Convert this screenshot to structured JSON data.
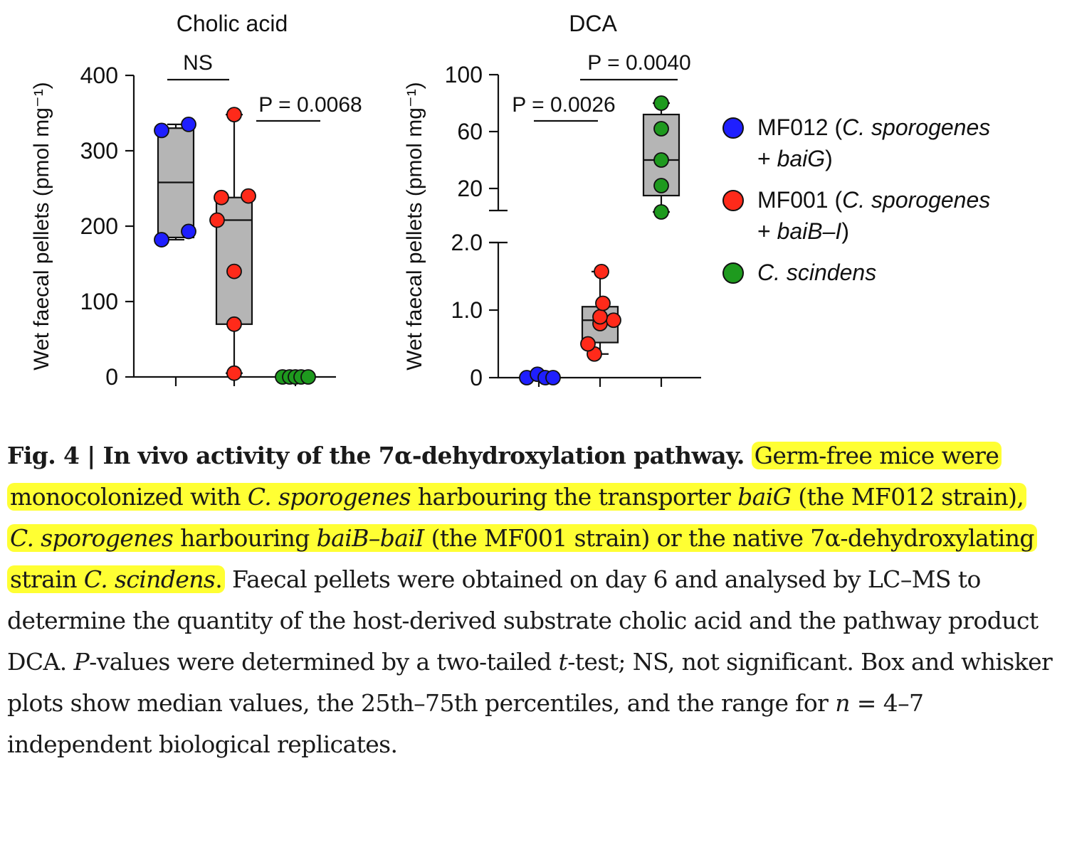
{
  "chart_data": [
    {
      "type": "box",
      "title": "Cholic acid",
      "ylabel": "Wet faecal pellets (pmol mg⁻¹)",
      "ylim": [
        0,
        400
      ],
      "yticks": [
        "0",
        "100",
        "200",
        "300",
        "400"
      ],
      "groups": [
        {
          "series": "MF012",
          "color": "#1f1fff",
          "points": [
            182,
            193,
            327,
            335
          ],
          "box": {
            "min": 182,
            "q1": 185,
            "median": 258,
            "q3": 330,
            "max": 335
          }
        },
        {
          "series": "MF001",
          "color": "#ff2a1a",
          "points": [
            5,
            70,
            140,
            208,
            238,
            240,
            348
          ],
          "box": {
            "min": 5,
            "q1": 70,
            "median": 208,
            "q3": 238,
            "max": 348
          }
        },
        {
          "series": "C. scindens",
          "color": "#1e9a1e",
          "points": [
            0,
            0,
            0,
            0,
            0
          ],
          "box": null
        }
      ],
      "annotations": [
        {
          "text": "NS",
          "between": [
            0,
            1
          ]
        },
        {
          "text": "P = 0.0068",
          "between": [
            1,
            2
          ]
        }
      ]
    },
    {
      "type": "box",
      "title": "DCA",
      "ylabel": "Wet faecal pellets (pmol mg⁻¹)",
      "broken_axis": true,
      "lower_ylim": [
        0,
        2.0
      ],
      "upper_ylim": [
        20,
        100
      ],
      "lower_yticks": [
        "0",
        "1.0",
        "2.0"
      ],
      "upper_yticks": [
        "20",
        "60",
        "100"
      ],
      "groups": [
        {
          "series": "MF012",
          "color": "#1f1fff",
          "points": [
            0.0,
            0.05,
            0.0,
            0.0
          ],
          "box": null
        },
        {
          "series": "MF001",
          "color": "#ff2a1a",
          "points": [
            0.35,
            0.5,
            0.8,
            0.85,
            0.9,
            1.1,
            1.57
          ],
          "box": {
            "min": 0.35,
            "q1": 0.52,
            "median": 0.85,
            "q3": 1.05,
            "max": 1.57
          }
        },
        {
          "series": "C. scindens",
          "color": "#1e9a1e",
          "points": [
            5,
            22,
            40,
            62,
            80
          ],
          "box": {
            "min": 5,
            "q1": 15,
            "median": 40,
            "q3": 72,
            "max": 80
          }
        }
      ],
      "annotations": [
        {
          "text": "P = 0.0026",
          "between": [
            0,
            1
          ]
        },
        {
          "text": "P = 0.0040",
          "between": [
            1,
            2
          ]
        }
      ]
    }
  ],
  "legend": [
    {
      "strain": "MF012",
      "species": "C. sporogenes",
      "gene": "baiG",
      "color": "#1f1fff"
    },
    {
      "strain": "MF001",
      "species": "C. sporogenes",
      "gene": "baiB–I",
      "color": "#ff2a1a"
    },
    {
      "species": "C. scindens",
      "color": "#1e9a1e"
    }
  ],
  "caption": {
    "lead": "Fig. 4 | In vivo activity of the 7α-dehydroxylation pathway.",
    "h1": "Germ-free mice were monocolonized with ",
    "h1_it": "C. sporogenes",
    "h2": " harbouring the transporter ",
    "h2_it": "baiG",
    "h3": " (the MF012 strain), ",
    "h3_it": "C. sporogenes",
    "h4": " harbouring ",
    "h4_it": "baiB–baiI",
    "h5": " (the MF001 strain) or the native 7α-dehydroxylating strain ",
    "h5_it": "C. scindens",
    "h6": ".",
    "r1": " Faecal pellets were obtained on day 6 and analysed by LC–MS to determine the quantity of the host-derived substrate cholic acid and the pathway product DCA. ",
    "r1_it": "P",
    "r2": "-values were determined by a two-tailed ",
    "r2_it": "t",
    "r3": "-test; NS, not significant. Box and whisker plots show median values, the 25th–75th percentiles, and the range for ",
    "r3_it": "n",
    "r4": " = 4–7 independent biological replicates."
  }
}
